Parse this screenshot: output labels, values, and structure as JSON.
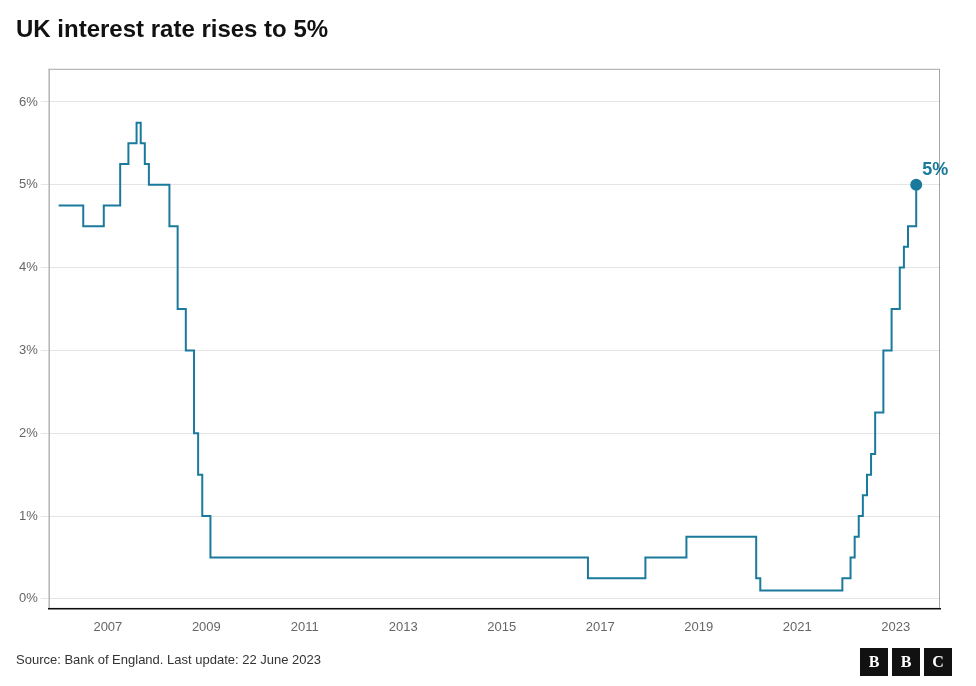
{
  "chart_data": {
    "type": "line",
    "title": "UK interest rate rises to 5%",
    "source": "Source: Bank of England. Last update: 22 June 2023",
    "logo": "BBC",
    "line_style": "steps-post",
    "marker": "end",
    "color": "#1a7a9c",
    "grid": "y",
    "x": [
      2006.0,
      2006.5,
      2006.917,
      2007.25,
      2007.417,
      2007.583,
      2007.667,
      2007.75,
      2007.833,
      2008.0,
      2008.25,
      2008.417,
      2008.583,
      2008.75,
      2008.833,
      2008.917,
      2009.0,
      2009.083,
      2009.167,
      2016.583,
      2016.75,
      2017.75,
      2017.917,
      2018.583,
      2018.75,
      2019.583,
      2019.667,
      2020.083,
      2020.167,
      2020.25,
      2021.833,
      2021.917,
      2022.0,
      2022.083,
      2022.167,
      2022.25,
      2022.333,
      2022.417,
      2022.5,
      2022.583,
      2022.667,
      2022.75,
      2022.833,
      2022.917,
      2023.0,
      2023.083,
      2023.167,
      2023.25,
      2023.417
    ],
    "values": [
      4.75,
      4.5,
      4.75,
      5.25,
      5.5,
      5.75,
      5.5,
      5.25,
      5.0,
      5.0,
      4.5,
      3.5,
      3.0,
      2.0,
      1.5,
      1.0,
      1.0,
      0.5,
      0.5,
      0.5,
      0.25,
      0.25,
      0.5,
      0.5,
      0.75,
      0.75,
      0.75,
      0.75,
      0.25,
      0.1,
      0.1,
      0.25,
      0.25,
      0.5,
      0.75,
      1.0,
      1.25,
      1.5,
      1.75,
      2.25,
      2.25,
      3.0,
      3.0,
      3.5,
      3.5,
      4.0,
      4.25,
      4.5,
      5.0
    ],
    "xlim": [
      2005.8,
      2023.9
    ],
    "xticks": [
      2007,
      2009,
      2011,
      2013,
      2015,
      2017,
      2019,
      2021,
      2023
    ],
    "ylim": [
      -0.12,
      6.4
    ],
    "yticks": [
      {
        "value": 0,
        "label": "0%"
      },
      {
        "value": 1,
        "label": "1%"
      },
      {
        "value": 2,
        "label": "2%"
      },
      {
        "value": 3,
        "label": "3%"
      },
      {
        "value": 4,
        "label": "4%"
      },
      {
        "value": 5,
        "label": "5%"
      },
      {
        "value": 6,
        "label": "6%"
      }
    ],
    "annotations": [
      {
        "text": "5%",
        "x": 2023.417,
        "y": 5.0,
        "color": "#1a7a9c"
      }
    ]
  }
}
